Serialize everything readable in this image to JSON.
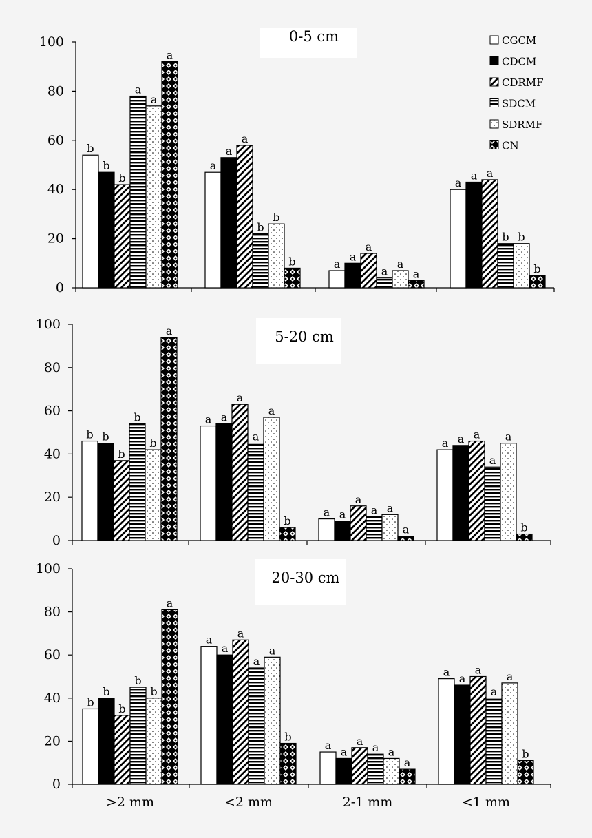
{
  "legend": [
    {
      "name": "CGCM",
      "pattern": "white"
    },
    {
      "name": "CDCM",
      "pattern": "black"
    },
    {
      "name": "CDRMF",
      "pattern": "diagonal"
    },
    {
      "name": "SDCM",
      "pattern": "horizontal"
    },
    {
      "name": "SDRMF",
      "pattern": "dots"
    },
    {
      "name": "CN",
      "pattern": "diamonds"
    }
  ],
  "colors": {
    "background": "#f4f4f4",
    "bar_fill": "#ffffff",
    "ink": "#000000"
  },
  "chart_data": [
    {
      "type": "bar",
      "title": "0-5 cm",
      "ylim": [
        0,
        100
      ],
      "yticks": [
        0,
        20,
        40,
        60,
        80,
        100
      ],
      "categories": [
        ">2 mm",
        "<2 mm",
        "2-1 mm",
        "<1 mm"
      ],
      "legend_placement": "top-right",
      "series": [
        {
          "name": "CGCM",
          "values": [
            54,
            47,
            7,
            40
          ],
          "labels": [
            "b",
            "a",
            "a",
            "a"
          ]
        },
        {
          "name": "CDCM",
          "values": [
            47,
            53,
            10,
            43
          ],
          "labels": [
            "b",
            "a",
            "a",
            "a"
          ]
        },
        {
          "name": "CDRMF",
          "values": [
            42,
            58,
            14,
            44
          ],
          "labels": [
            "b",
            "a",
            "a",
            "a"
          ]
        },
        {
          "name": "SDCM",
          "values": [
            78,
            22,
            4,
            18
          ],
          "labels": [
            "a",
            "b",
            "a",
            "b"
          ]
        },
        {
          "name": "SDRMF",
          "values": [
            74,
            26,
            7,
            18
          ],
          "labels": [
            "a",
            "b",
            "a",
            "b"
          ]
        },
        {
          "name": "CN",
          "values": [
            92,
            8,
            3,
            5
          ],
          "labels": [
            "a",
            "b",
            "a",
            "b"
          ]
        }
      ]
    },
    {
      "type": "bar",
      "title": "5-20 cm",
      "ylim": [
        0,
        100
      ],
      "yticks": [
        0,
        20,
        40,
        60,
        80,
        100
      ],
      "categories": [
        ">2 mm",
        "<2 mm",
        "2-1 mm",
        "<1 mm"
      ],
      "series": [
        {
          "name": "CGCM",
          "values": [
            46,
            53,
            10,
            42
          ],
          "labels": [
            "b",
            "a",
            "a",
            "a"
          ]
        },
        {
          "name": "CDCM",
          "values": [
            45,
            54,
            9,
            44
          ],
          "labels": [
            "b",
            "a",
            "a",
            "a"
          ]
        },
        {
          "name": "CDRMF",
          "values": [
            37,
            63,
            16,
            46
          ],
          "labels": [
            "b",
            "a",
            "a",
            "a"
          ]
        },
        {
          "name": "SDCM",
          "values": [
            54,
            45,
            11,
            34
          ],
          "labels": [
            "b",
            "a",
            "a",
            "a"
          ]
        },
        {
          "name": "SDRMF",
          "values": [
            42,
            57,
            12,
            45
          ],
          "labels": [
            "b",
            "a",
            "a",
            "a"
          ]
        },
        {
          "name": "CN",
          "values": [
            94,
            6,
            2,
            3
          ],
          "labels": [
            "a",
            "b",
            "a",
            "b"
          ]
        }
      ]
    },
    {
      "type": "bar",
      "title": "20-30 cm",
      "ylim": [
        0,
        100
      ],
      "yticks": [
        0,
        20,
        40,
        60,
        80,
        100
      ],
      "categories": [
        ">2 mm",
        "<2 mm",
        "2-1 mm",
        "<1 mm"
      ],
      "series": [
        {
          "name": "CGCM",
          "values": [
            35,
            64,
            15,
            49
          ],
          "labels": [
            "b",
            "a",
            "a",
            "a"
          ]
        },
        {
          "name": "CDCM",
          "values": [
            40,
            60,
            12,
            46
          ],
          "labels": [
            "b",
            "a",
            "a",
            "a"
          ]
        },
        {
          "name": "CDRMF",
          "values": [
            32,
            67,
            17,
            50
          ],
          "labels": [
            "b",
            "a",
            "a",
            "a"
          ]
        },
        {
          "name": "SDCM",
          "values": [
            45,
            54,
            14,
            40
          ],
          "labels": [
            "b",
            "a",
            "a",
            "a"
          ]
        },
        {
          "name": "SDRMF",
          "values": [
            40,
            59,
            12,
            47
          ],
          "labels": [
            "b",
            "a",
            "a",
            "a"
          ]
        },
        {
          "name": "CN",
          "values": [
            81,
            19,
            7,
            11
          ],
          "labels": [
            "a",
            "b",
            "a",
            "b"
          ]
        }
      ]
    }
  ]
}
